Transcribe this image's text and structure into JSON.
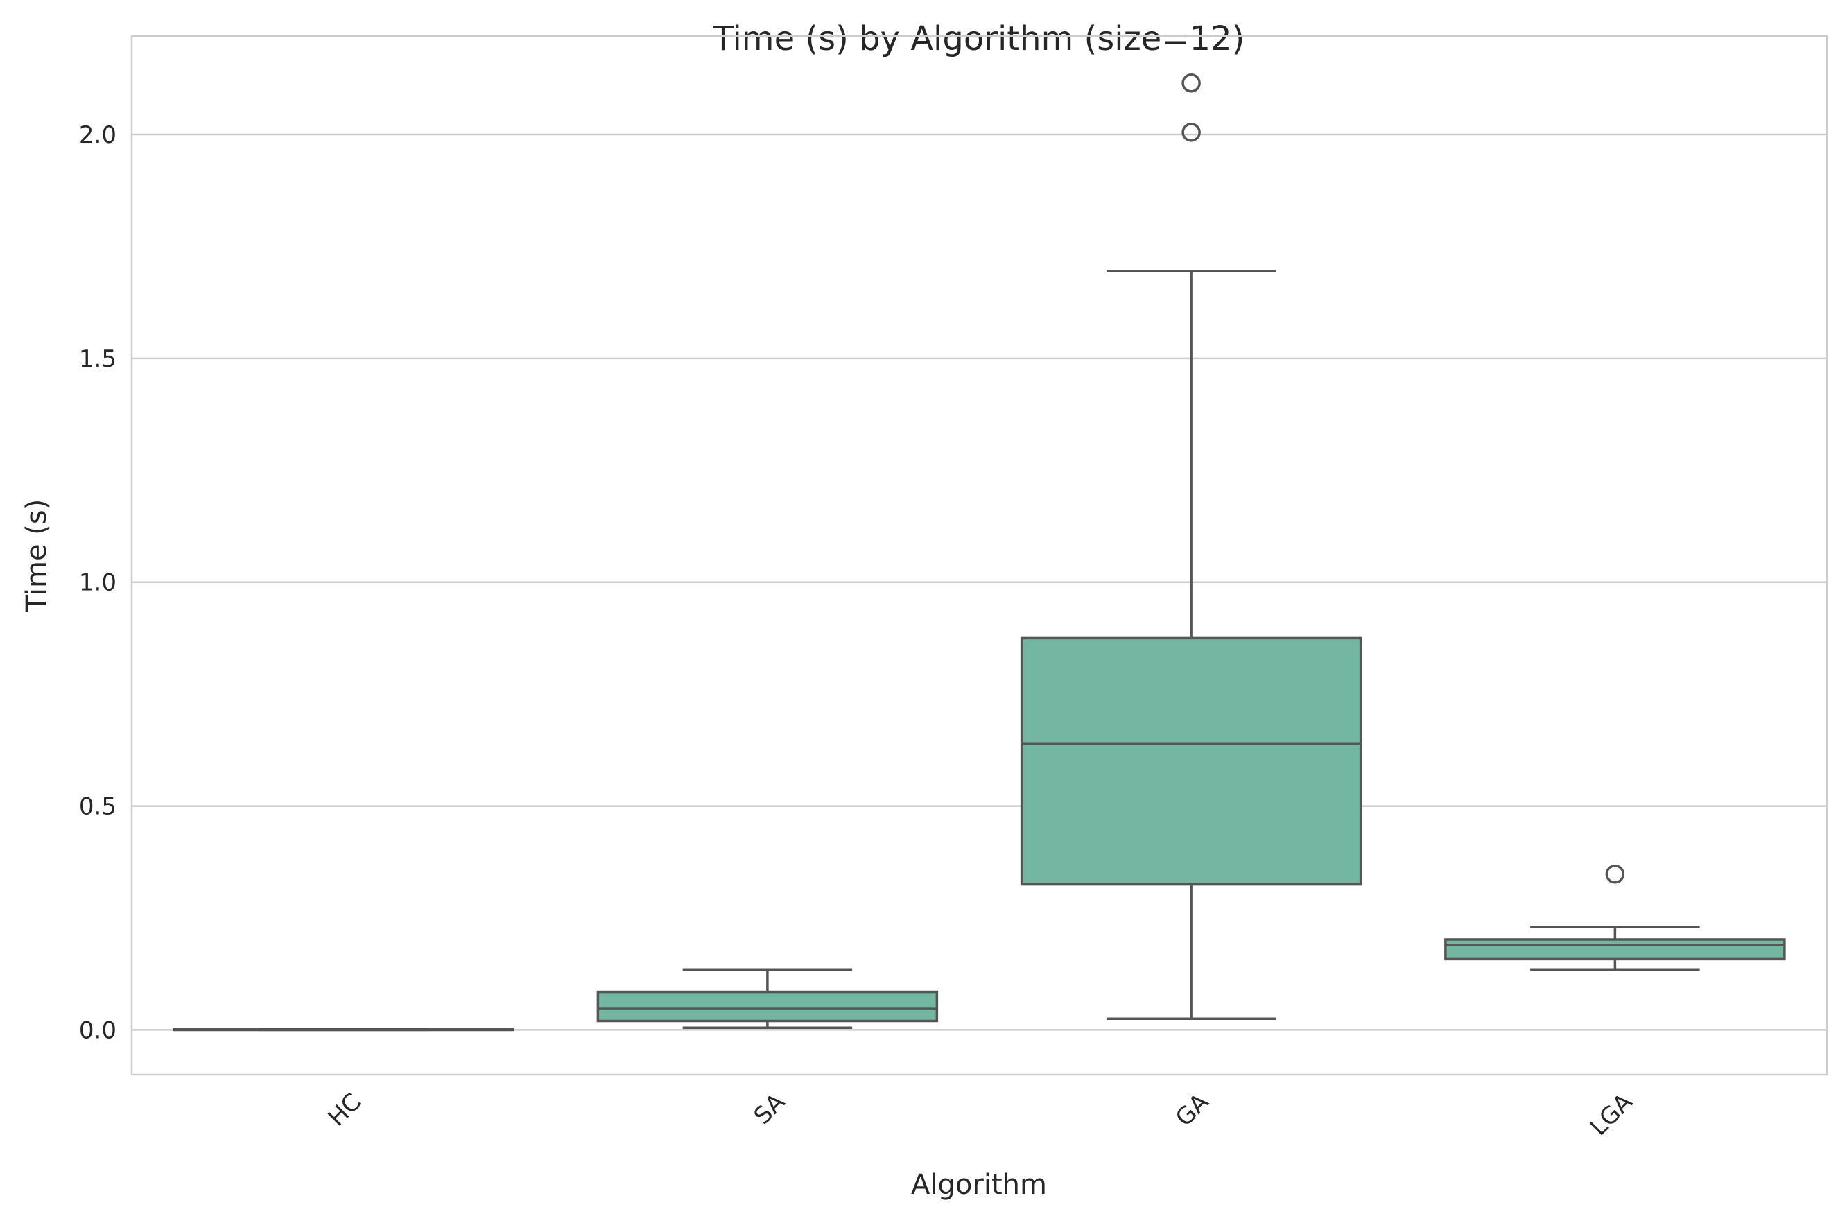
{
  "chart_data": {
    "type": "box",
    "title": "Time (s) by Algorithm (size=12)",
    "xlabel": "Algorithm",
    "ylabel": "Time (s)",
    "ylim": [
      -0.1,
      2.22
    ],
    "yticks": [
      0.0,
      0.5,
      1.0,
      1.5,
      2.0
    ],
    "ytick_labels": [
      "0.0",
      "0.5",
      "1.0",
      "1.5",
      "2.0"
    ],
    "grid": "horizontal",
    "box_color": "#73b6a2",
    "line_color": "#555555",
    "categories": [
      "HC",
      "SA",
      "GA",
      "LGA"
    ],
    "boxes": [
      {
        "category": "HC",
        "whisker_low": 0.0,
        "q1": 0.0,
        "median": 0.0,
        "q3": 0.001,
        "whisker_high": 0.001,
        "fliers": []
      },
      {
        "category": "SA",
        "whisker_low": 0.005,
        "q1": 0.02,
        "median": 0.047,
        "q3": 0.085,
        "whisker_high": 0.135,
        "fliers": []
      },
      {
        "category": "GA",
        "whisker_low": 0.025,
        "q1": 0.325,
        "median": 0.64,
        "q3": 0.875,
        "whisker_high": 1.695,
        "fliers": [
          2.005,
          2.115
        ]
      },
      {
        "category": "LGA",
        "whisker_low": 0.135,
        "q1": 0.158,
        "median": 0.19,
        "q3": 0.202,
        "whisker_high": 0.23,
        "fliers": [
          0.348
        ]
      }
    ]
  }
}
